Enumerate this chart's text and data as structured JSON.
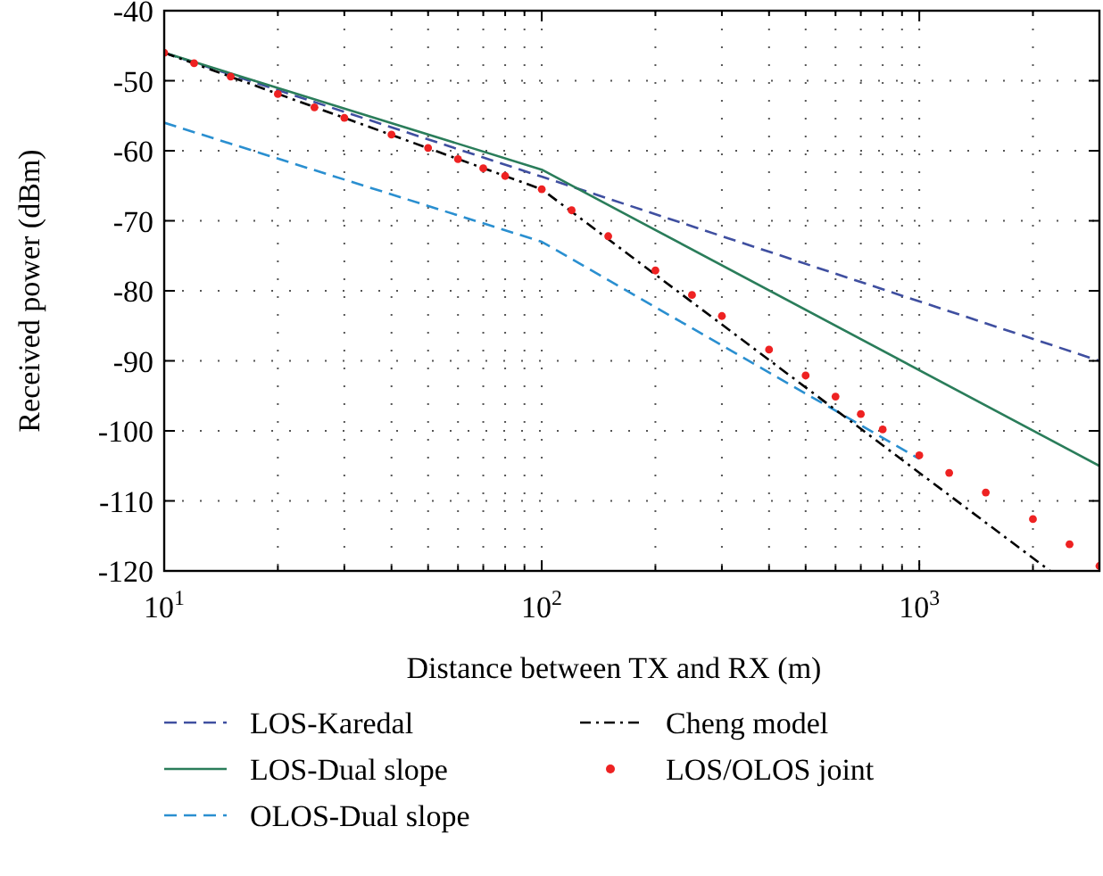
{
  "chart_data": {
    "type": "line",
    "xlabel": "Distance between TX and RX (m)",
    "ylabel": "Received power (dBm)",
    "log": "x",
    "grid": true,
    "legend": "bottom",
    "xlim": [
      10,
      3000
    ],
    "ylim": [
      -120,
      -40
    ],
    "xticks": [
      {
        "value": 10,
        "label": "10$^{1}$"
      },
      {
        "value": 20,
        "label": null
      },
      {
        "value": 30,
        "label": null
      },
      {
        "value": 40,
        "label": null
      },
      {
        "value": 50,
        "label": null
      },
      {
        "value": 60,
        "label": null
      },
      {
        "value": 70,
        "label": null
      },
      {
        "value": 80,
        "label": null
      },
      {
        "value": 90,
        "label": null
      },
      {
        "value": 100,
        "label": "10$^{2}$"
      },
      {
        "value": 200,
        "label": null
      },
      {
        "value": 300,
        "label": null
      },
      {
        "value": 400,
        "label": null
      },
      {
        "value": 500,
        "label": null
      },
      {
        "value": 600,
        "label": null
      },
      {
        "value": 700,
        "label": null
      },
      {
        "value": 800,
        "label": null
      },
      {
        "value": 900,
        "label": null
      },
      {
        "value": 1000,
        "label": "10$^{3}$"
      },
      {
        "value": 2000,
        "label": null
      },
      {
        "value": 3000,
        "label": null
      }
    ],
    "yticks": [
      -120,
      -110,
      -100,
      -90,
      -80,
      -70,
      -60,
      -50,
      -40
    ],
    "series": [
      {
        "name": "LOS-Karedal",
        "color": "#3f4fa0",
        "line_style": "dashed",
        "x": [
          10,
          100,
          3000
        ],
        "values": [
          -46,
          -63.7,
          -90
        ]
      },
      {
        "name": "LOS-Dual slope",
        "color": "#2a7d5a",
        "line_style": "solid",
        "x": [
          10,
          100,
          3000
        ],
        "values": [
          -46,
          -62.7,
          -105
        ]
      },
      {
        "name": "OLOS-Dual slope",
        "color": "#2a8fd0",
        "line_style": "dashed",
        "x": [
          10,
          100,
          1000
        ],
        "values": [
          -56,
          -73,
          -104
        ]
      },
      {
        "name": "Cheng model",
        "color": "#000000",
        "line_style": "dashdot",
        "x": [
          10,
          100,
          2220
        ],
        "values": [
          -46,
          -65.5,
          -120
        ]
      },
      {
        "name": "LOS/OLOS joint",
        "type": "scatter",
        "marker": "circle",
        "color": "#ee2222",
        "x": [
          10,
          12,
          15,
          20,
          25,
          30,
          40,
          50,
          60,
          70,
          80,
          100,
          120,
          150,
          200,
          250,
          300,
          400,
          500,
          600,
          700,
          800,
          1000,
          1200,
          1500,
          2000,
          2500,
          3000
        ],
        "values": [
          -46,
          -47.5,
          -49.4,
          -51.9,
          -53.8,
          -55.3,
          -57.7,
          -59.6,
          -61.2,
          -62.5,
          -63.6,
          -65.5,
          -68.5,
          -72.2,
          -77.1,
          -80.6,
          -83.6,
          -88.4,
          -92.1,
          -95.1,
          -97.6,
          -99.8,
          -103.5,
          -106,
          -108.8,
          -112.6,
          -116.2,
          -119.3
        ]
      }
    ]
  }
}
